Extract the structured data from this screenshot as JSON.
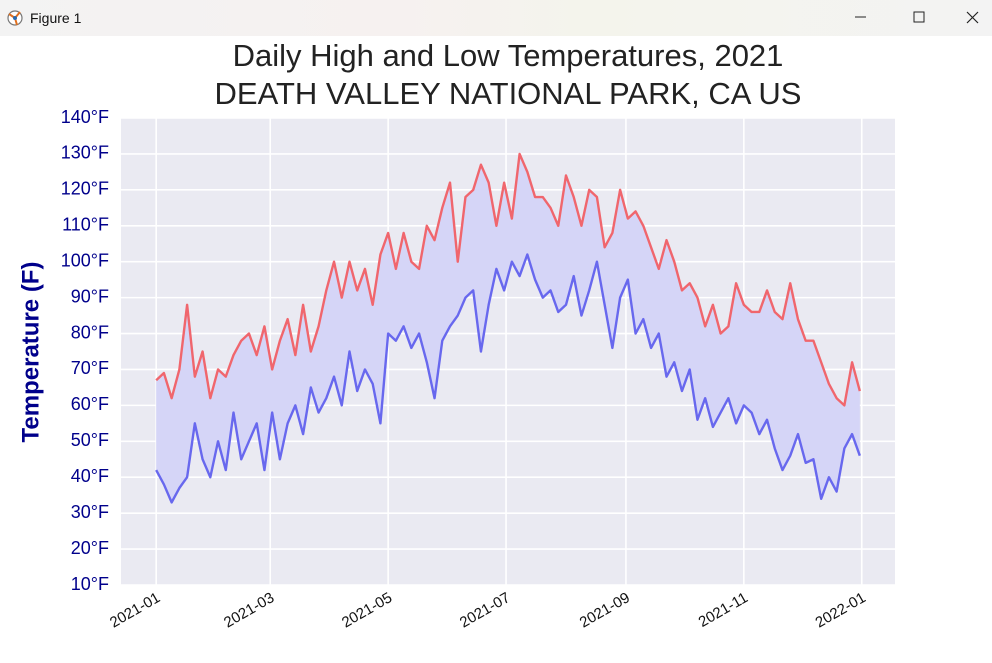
{
  "window": {
    "title": "Figure 1"
  },
  "chart_data": {
    "type": "line",
    "title": "Daily High and Low Temperatures, 2021",
    "subtitle": "DEATH VALLEY NATIONAL PARK, CA US",
    "y_label": "Temperature (F)",
    "x": [
      0,
      4,
      8,
      12,
      16,
      20,
      24,
      28,
      32,
      36,
      40,
      44,
      48,
      52,
      56,
      60,
      64,
      68,
      72,
      76,
      80,
      84,
      88,
      92,
      96,
      100,
      104,
      108,
      112,
      116,
      120,
      124,
      128,
      132,
      136,
      140,
      144,
      148,
      152,
      156,
      160,
      164,
      168,
      172,
      176,
      180,
      184,
      188,
      192,
      196,
      200,
      204,
      208,
      212,
      216,
      220,
      224,
      228,
      232,
      236,
      240,
      244,
      248,
      252,
      256,
      260,
      264,
      268,
      272,
      276,
      280,
      284,
      288,
      292,
      296,
      300,
      304,
      308,
      312,
      316,
      320,
      324,
      328,
      332,
      336,
      340,
      344,
      348,
      352,
      356,
      360,
      364
    ],
    "series": [
      {
        "color": "#f0666d",
        "values": [
          67,
          69,
          62,
          70,
          88,
          68,
          75,
          62,
          70,
          68,
          74,
          78,
          80,
          74,
          82,
          70,
          78,
          84,
          74,
          88,
          75,
          82,
          92,
          100,
          90,
          100,
          92,
          98,
          88,
          102,
          108,
          98,
          108,
          100,
          98,
          110,
          106,
          115,
          122,
          100,
          118,
          120,
          127,
          122,
          110,
          122,
          112,
          130,
          125,
          118,
          118,
          115,
          110,
          124,
          118,
          110,
          120,
          118,
          104,
          108,
          120,
          112,
          114,
          110,
          104,
          98,
          106,
          100,
          92,
          94,
          90,
          82,
          88,
          80,
          82,
          94,
          88,
          86,
          86,
          92,
          86,
          84,
          94,
          84,
          78,
          78,
          72,
          66,
          62,
          60,
          72,
          64
        ]
      },
      {
        "color": "#6868ee",
        "values": [
          42,
          38,
          33,
          37,
          40,
          55,
          45,
          40,
          50,
          42,
          58,
          45,
          50,
          55,
          42,
          58,
          45,
          55,
          60,
          52,
          65,
          58,
          62,
          68,
          60,
          75,
          64,
          70,
          66,
          55,
          80,
          78,
          82,
          76,
          80,
          72,
          62,
          78,
          82,
          85,
          90,
          92,
          75,
          88,
          98,
          92,
          100,
          96,
          102,
          95,
          90,
          92,
          86,
          88,
          96,
          85,
          92,
          100,
          88,
          76,
          90,
          95,
          80,
          84,
          76,
          80,
          68,
          72,
          64,
          70,
          56,
          62,
          54,
          58,
          62,
          55,
          60,
          58,
          52,
          56,
          48,
          42,
          46,
          52,
          44,
          45,
          34,
          40,
          36,
          48,
          52,
          46
        ]
      }
    ],
    "fill_between_color": "#d5d5f7",
    "background": "#eaeaf2",
    "grid": true,
    "xlim": [
      -18.2,
      382.2
    ],
    "xticks": [
      {
        "value": 0,
        "label": "2021-01"
      },
      {
        "value": 59,
        "label": "2021-03"
      },
      {
        "value": 120,
        "label": "2021-05"
      },
      {
        "value": 181,
        "label": "2021-07"
      },
      {
        "value": 243,
        "label": "2021-09"
      },
      {
        "value": 304,
        "label": "2021-11"
      },
      {
        "value": 365,
        "label": "2022-01"
      }
    ],
    "ylim": [
      10,
      140
    ],
    "yticks": [
      {
        "value": 10,
        "label": "10°F"
      },
      {
        "value": 20,
        "label": "20°F"
      },
      {
        "value": 30,
        "label": "30°F"
      },
      {
        "value": 40,
        "label": "40°F"
      },
      {
        "value": 50,
        "label": "50°F"
      },
      {
        "value": 60,
        "label": "60°F"
      },
      {
        "value": 70,
        "label": "70°F"
      },
      {
        "value": 80,
        "label": "80°F"
      },
      {
        "value": 90,
        "label": "90°F"
      },
      {
        "value": 100,
        "label": "100°F"
      },
      {
        "value": 110,
        "label": "110°F"
      },
      {
        "value": 120,
        "label": "120°F"
      },
      {
        "value": 130,
        "label": "130°F"
      },
      {
        "value": 140,
        "label": "140°F"
      }
    ]
  }
}
